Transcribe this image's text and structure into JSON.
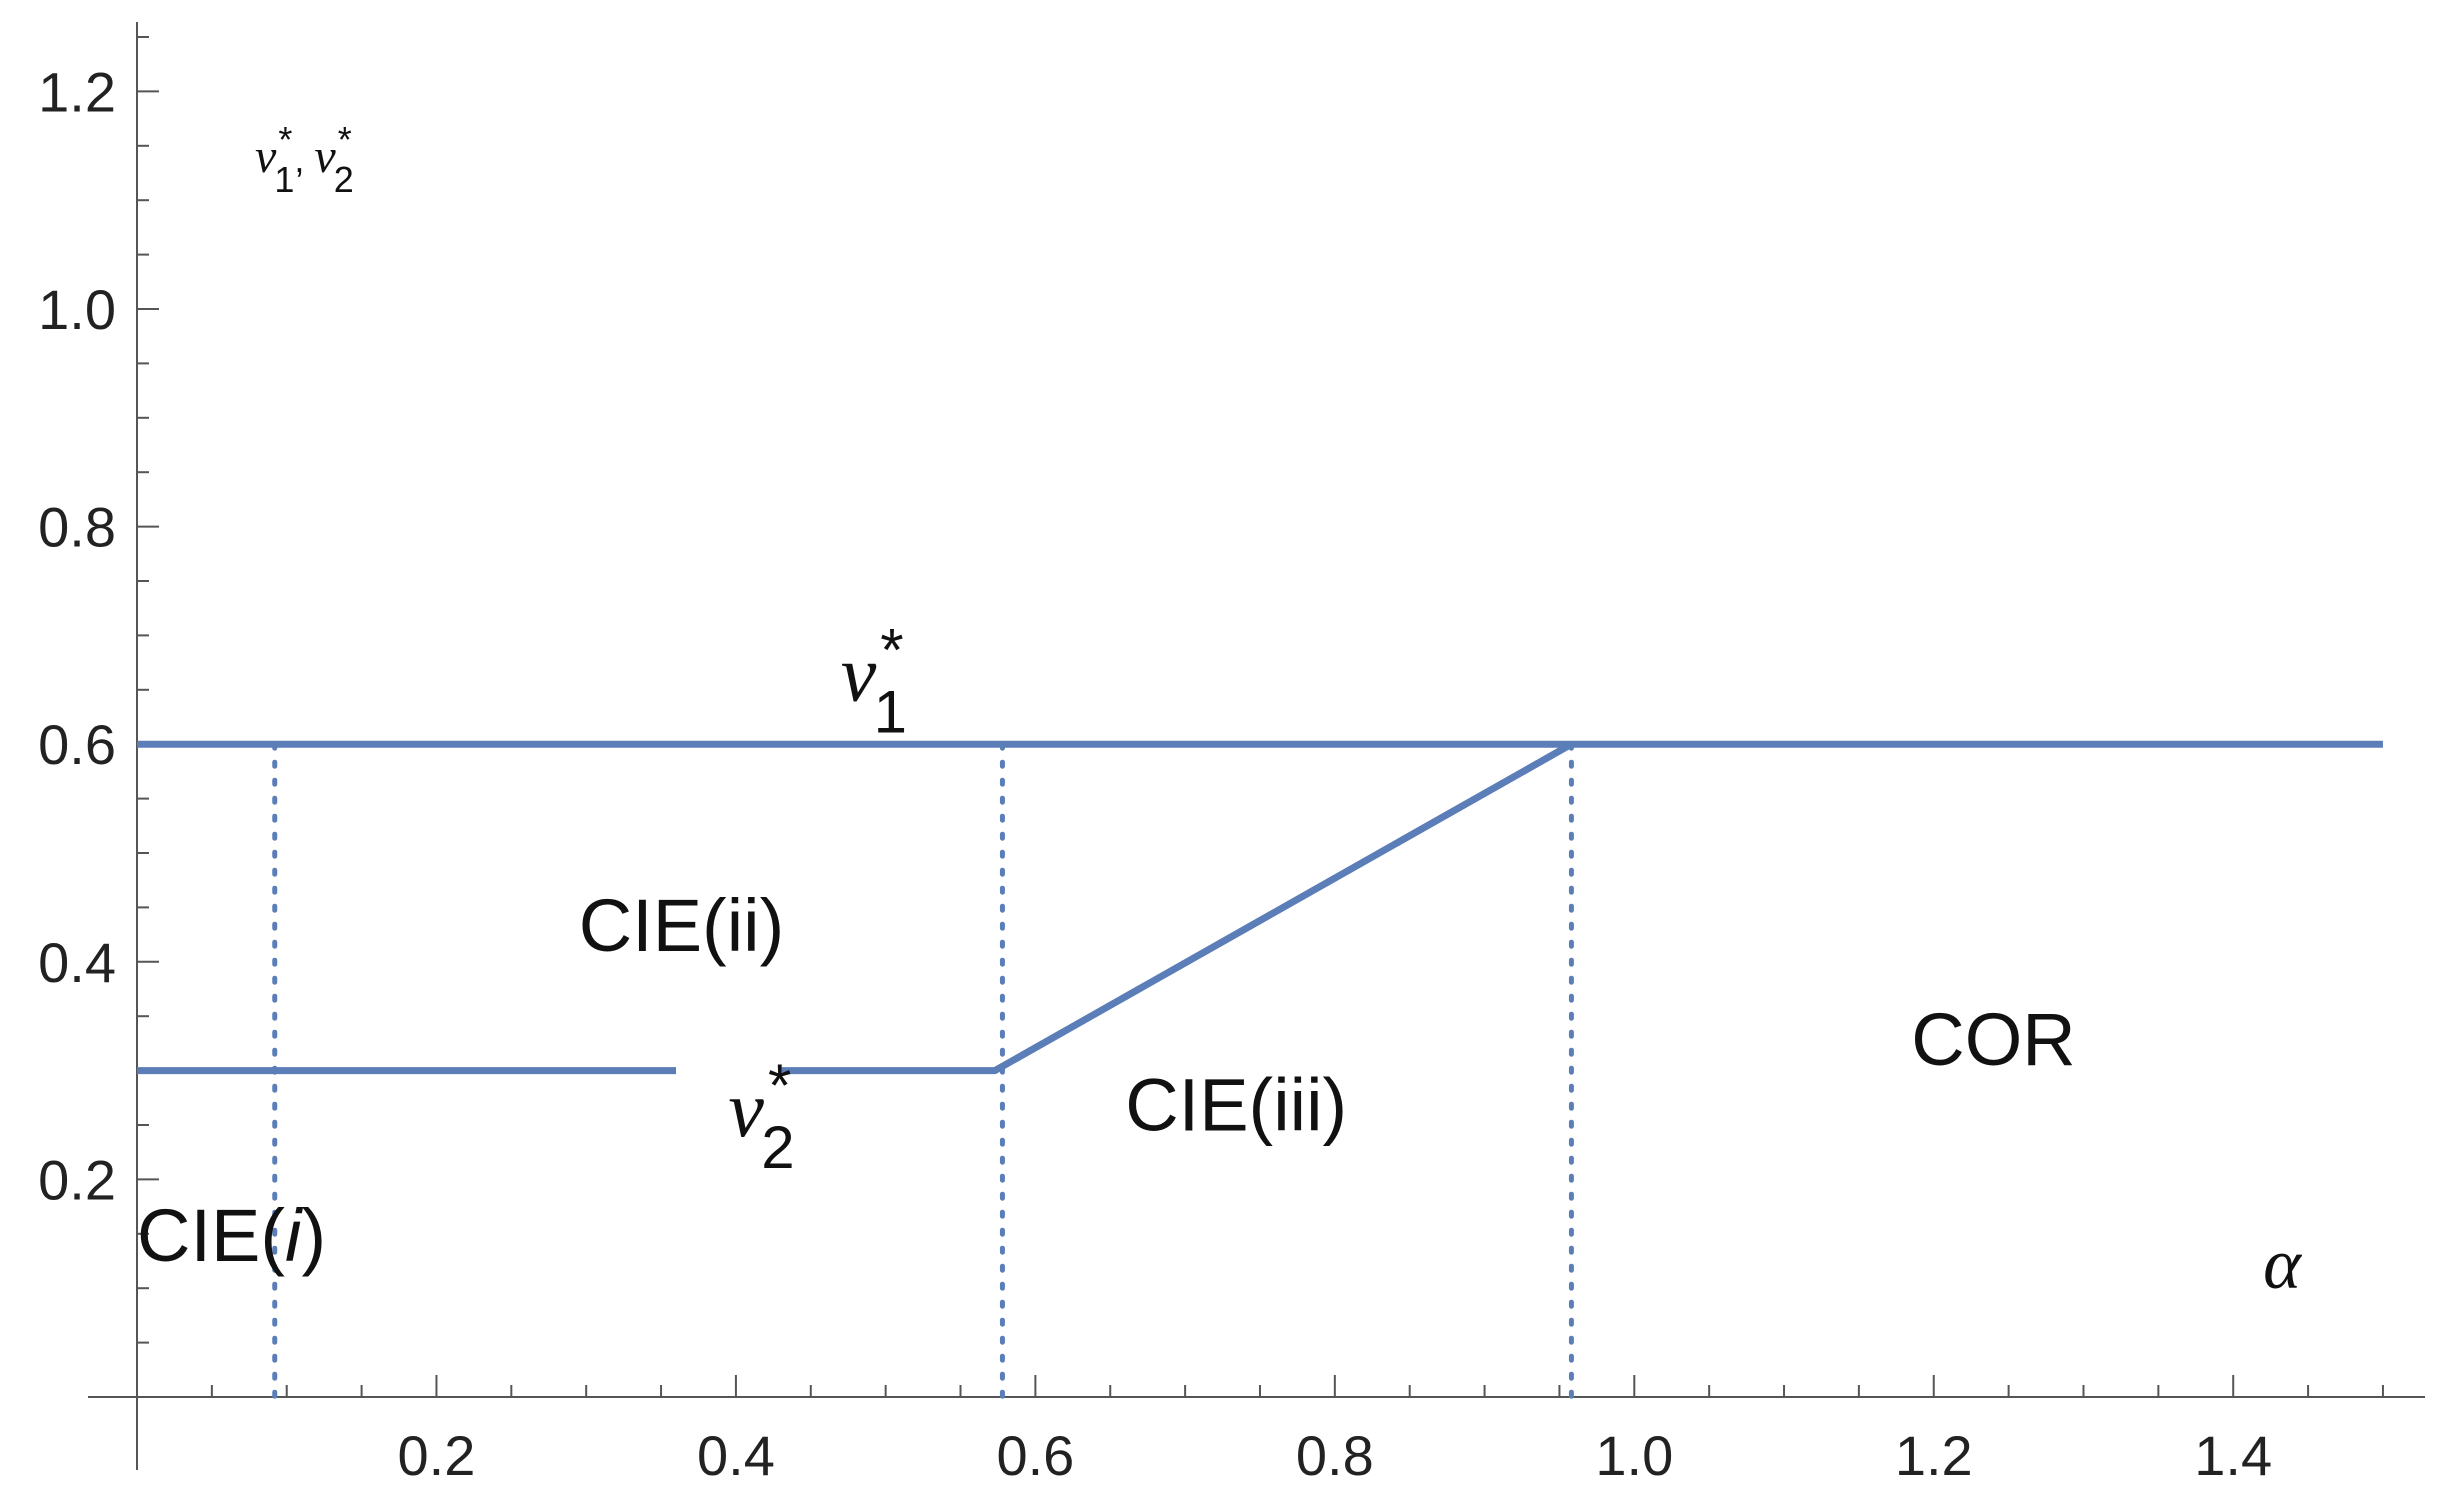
{
  "chart_data": {
    "type": "line",
    "xlabel": "α",
    "ylabel_parts": [
      "v",
      "*",
      "1",
      ", ",
      "v",
      "*",
      "2"
    ],
    "xlim": [
      0,
      1.5
    ],
    "ylim": [
      0,
      1.25
    ],
    "x_ticks": [
      0.2,
      0.4,
      0.6,
      0.8,
      1.0,
      1.2,
      1.4
    ],
    "x_tick_labels": [
      "0.2",
      "0.4",
      "0.6",
      "0.8",
      "1.0",
      "1.2",
      "1.4"
    ],
    "x_minor_step": 0.05,
    "y_ticks": [
      0.2,
      0.4,
      0.6,
      0.8,
      1.0,
      1.2
    ],
    "y_tick_labels": [
      "0.2",
      "0.4",
      "0.6",
      "0.8",
      "1.0",
      "1.2"
    ],
    "y_minor_step": 0.05,
    "grid": false,
    "line_color": "#5b7db8",
    "series": [
      {
        "name_parts": [
          "v",
          "*",
          "1"
        ],
        "points": [
          [
            0,
            0.6
          ],
          [
            1.5,
            0.6
          ]
        ],
        "label_at": [
          0.47,
          0.64
        ]
      },
      {
        "name_parts": [
          "v",
          "*",
          "2"
        ],
        "points": [
          [
            0,
            0.3
          ],
          [
            0.573,
            0.3
          ],
          [
            0.958,
            0.6
          ]
        ],
        "gap": [
          0.36,
          0.43
        ],
        "label_at": [
          0.395,
          0.24
        ]
      }
    ],
    "vertical_dotted_lines": [
      0.092,
      0.578,
      0.958
    ],
    "regions": [
      {
        "id": "cie-i",
        "parts": [
          "CIE(",
          "i",
          ")"
        ],
        "italic_index": 1,
        "at": [
          0.0,
          0.125
        ]
      },
      {
        "id": "cie-ii",
        "parts": [
          "CIE(ii)"
        ],
        "italic_index": -1,
        "at": [
          0.295,
          0.41
        ]
      },
      {
        "id": "cie-iii",
        "parts": [
          "CIE(iii)"
        ],
        "italic_index": -1,
        "at": [
          0.66,
          0.245
        ]
      },
      {
        "id": "cor",
        "parts": [
          "COR"
        ],
        "italic_index": -1,
        "at": [
          1.185,
          0.305
        ]
      }
    ],
    "xlabel_at": [
      1.42,
      0.1
    ]
  }
}
